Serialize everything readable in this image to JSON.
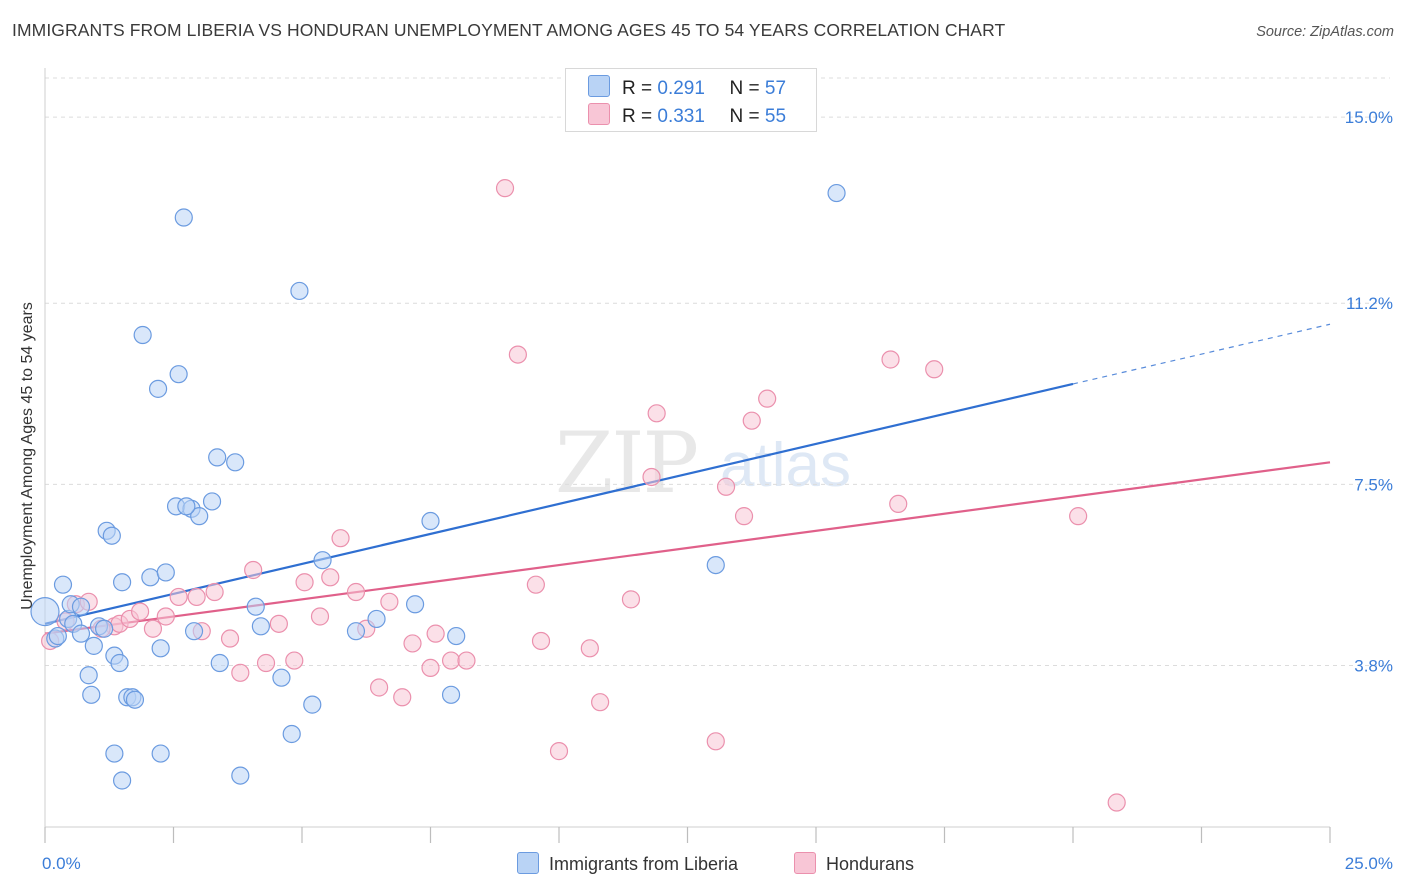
{
  "header": {
    "title": "IMMIGRANTS FROM LIBERIA VS HONDURAN UNEMPLOYMENT AMONG AGES 45 TO 54 YEARS CORRELATION CHART",
    "source": "Source: ZipAtlas.com"
  },
  "legend": {
    "series1": {
      "r_label": "R =",
      "r_value": "0.291",
      "n_label": "N =",
      "n_value": "57"
    },
    "series2": {
      "r_label": "R =",
      "r_value": "0.331",
      "n_label": "N =",
      "n_value": "55"
    }
  },
  "bottom_legend": {
    "series1": "Immigrants from Liberia",
    "series2": "Hondurans"
  },
  "colors": {
    "series1_fill": "#b9d3f5",
    "series1_stroke": "#6b9be0",
    "series1_line": "#2f6fd1",
    "series2_fill": "#f8c6d6",
    "series2_stroke": "#eb90ad",
    "series2_line": "#e0608a",
    "tick_label": "#3b7dd8",
    "grid": "#dcdcdc"
  },
  "chart_data": {
    "type": "scatter",
    "title": "IMMIGRANTS FROM LIBERIA VS HONDURAN UNEMPLOYMENT AMONG AGES 45 TO 54 YEARS CORRELATION CHART",
    "xlabel": "",
    "ylabel": "Unemployment Among Ages 45 to 54 years",
    "xlim": [
      0,
      25
    ],
    "ylim": [
      0.5,
      15.8
    ],
    "x_tick_labels": [
      {
        "value": 0,
        "label": "0.0%"
      },
      {
        "value": 25,
        "label": "25.0%"
      }
    ],
    "y_ticks": [
      {
        "value": 3.8,
        "label": "3.8%"
      },
      {
        "value": 7.5,
        "label": "7.5%"
      },
      {
        "value": 11.2,
        "label": "11.2%"
      },
      {
        "value": 15.0,
        "label": "15.0%"
      }
    ],
    "grid": true,
    "legend_position": "top-center",
    "series": [
      {
        "name": "Immigrants from Liberia",
        "R": 0.291,
        "N": 57,
        "trend": {
          "x0": 0,
          "y0": 4.65,
          "x1": 20,
          "y1": 9.55,
          "dashed_to_x": 25,
          "dashed_to_y": 10.77
        },
        "points": [
          [
            0.0,
            4.9
          ],
          [
            0.2,
            4.35
          ],
          [
            0.25,
            4.4
          ],
          [
            0.35,
            5.45
          ],
          [
            0.45,
            4.75
          ],
          [
            0.5,
            5.05
          ],
          [
            0.55,
            4.65
          ],
          [
            0.7,
            5.0
          ],
          [
            0.7,
            4.45
          ],
          [
            0.85,
            3.6
          ],
          [
            0.9,
            3.2
          ],
          [
            0.95,
            4.2
          ],
          [
            1.05,
            4.6
          ],
          [
            1.15,
            4.55
          ],
          [
            1.2,
            6.55
          ],
          [
            1.3,
            6.45
          ],
          [
            1.35,
            4.0
          ],
          [
            1.45,
            3.85
          ],
          [
            1.5,
            5.5
          ],
          [
            1.6,
            3.15
          ],
          [
            1.7,
            3.15
          ],
          [
            1.75,
            3.1
          ],
          [
            1.35,
            2.0
          ],
          [
            1.5,
            1.45
          ],
          [
            1.9,
            10.55
          ],
          [
            2.05,
            5.6
          ],
          [
            2.2,
            9.45
          ],
          [
            2.25,
            4.15
          ],
          [
            2.35,
            5.7
          ],
          [
            2.55,
            7.05
          ],
          [
            2.6,
            9.75
          ],
          [
            2.7,
            12.95
          ],
          [
            2.85,
            7.0
          ],
          [
            2.9,
            4.5
          ],
          [
            3.0,
            6.85
          ],
          [
            3.25,
            7.15
          ],
          [
            3.35,
            8.05
          ],
          [
            3.4,
            3.85
          ],
          [
            3.7,
            7.95
          ],
          [
            3.8,
            1.55
          ],
          [
            4.1,
            5.0
          ],
          [
            4.2,
            4.6
          ],
          [
            4.6,
            3.55
          ],
          [
            4.8,
            2.4
          ],
          [
            4.95,
            11.45
          ],
          [
            5.2,
            3.0
          ],
          [
            5.4,
            5.95
          ],
          [
            6.05,
            4.5
          ],
          [
            6.45,
            4.75
          ],
          [
            7.2,
            5.05
          ],
          [
            7.5,
            6.75
          ],
          [
            7.9,
            3.2
          ],
          [
            8.0,
            4.4
          ],
          [
            13.05,
            5.85
          ],
          [
            15.4,
            13.45
          ],
          [
            2.25,
            2.0
          ],
          [
            2.75,
            7.05
          ]
        ]
      },
      {
        "name": "Hondurans",
        "R": 0.331,
        "N": 55,
        "trend": {
          "x0": 0,
          "y0": 4.45,
          "x1": 25,
          "y1": 7.95
        },
        "points": [
          [
            0.1,
            4.3
          ],
          [
            0.4,
            4.7
          ],
          [
            0.6,
            5.05
          ],
          [
            0.85,
            5.1
          ],
          [
            1.35,
            4.6
          ],
          [
            1.45,
            4.65
          ],
          [
            1.65,
            4.75
          ],
          [
            1.85,
            4.9
          ],
          [
            2.1,
            4.55
          ],
          [
            2.35,
            4.8
          ],
          [
            2.6,
            5.2
          ],
          [
            2.95,
            5.2
          ],
          [
            3.05,
            4.5
          ],
          [
            3.3,
            5.3
          ],
          [
            3.6,
            4.35
          ],
          [
            3.8,
            3.65
          ],
          [
            4.05,
            5.75
          ],
          [
            4.3,
            3.85
          ],
          [
            4.55,
            4.65
          ],
          [
            4.85,
            3.9
          ],
          [
            5.05,
            5.5
          ],
          [
            5.35,
            4.8
          ],
          [
            5.55,
            5.6
          ],
          [
            5.75,
            6.4
          ],
          [
            6.05,
            5.3
          ],
          [
            6.25,
            4.55
          ],
          [
            6.5,
            3.35
          ],
          [
            6.7,
            5.1
          ],
          [
            6.95,
            3.15
          ],
          [
            7.15,
            4.25
          ],
          [
            7.5,
            3.75
          ],
          [
            7.6,
            4.45
          ],
          [
            7.9,
            3.9
          ],
          [
            8.2,
            3.9
          ],
          [
            8.95,
            13.55
          ],
          [
            9.2,
            10.15
          ],
          [
            9.55,
            5.45
          ],
          [
            9.65,
            4.3
          ],
          [
            10.0,
            2.05
          ],
          [
            10.6,
            4.15
          ],
          [
            10.8,
            3.05
          ],
          [
            11.4,
            5.15
          ],
          [
            11.8,
            7.65
          ],
          [
            11.9,
            8.95
          ],
          [
            13.05,
            2.25
          ],
          [
            13.25,
            7.45
          ],
          [
            13.6,
            6.85
          ],
          [
            13.75,
            8.8
          ],
          [
            14.05,
            9.25
          ],
          [
            16.45,
            10.05
          ],
          [
            16.6,
            7.1
          ],
          [
            17.3,
            9.85
          ],
          [
            20.1,
            6.85
          ],
          [
            20.85,
            1.0
          ],
          [
            1.1,
            4.55
          ]
        ]
      }
    ]
  }
}
